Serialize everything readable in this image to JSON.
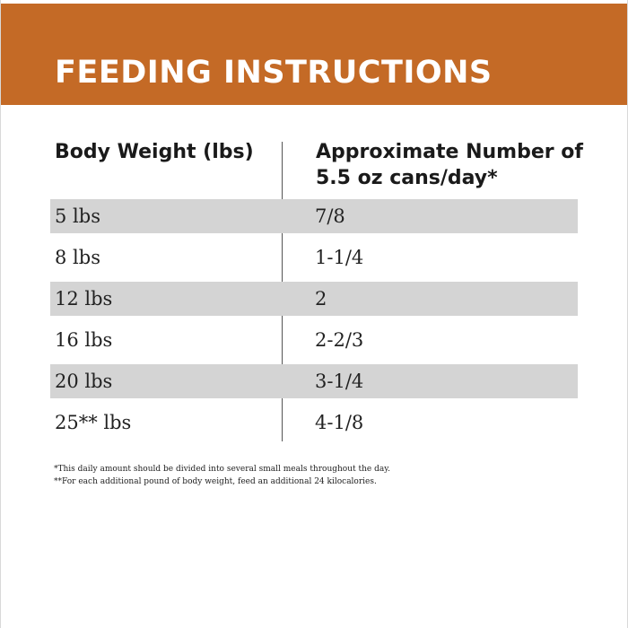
{
  "header": {
    "title": "FEEDING INSTRUCTIONS",
    "color": "#c46a26"
  },
  "table": {
    "columns": [
      "Body Weight (lbs)",
      "Approximate Number of 5.5 oz cans/day*"
    ],
    "rows": [
      {
        "weight": "5 lbs",
        "cans": "7/8",
        "shaded": true
      },
      {
        "weight": "8 lbs",
        "cans": "1-1/4",
        "shaded": false
      },
      {
        "weight": "12 lbs",
        "cans": "2",
        "shaded": true
      },
      {
        "weight": "16 lbs",
        "cans": "2-2/3",
        "shaded": false
      },
      {
        "weight": "20 lbs",
        "cans": "3-1/4",
        "shaded": true
      },
      {
        "weight": "25** lbs",
        "cans": "4-1/8",
        "shaded": false
      }
    ],
    "shade_color": "#d4d4d4"
  },
  "footnotes": [
    "*This daily amount should be divided into several small meals throughout the day.",
    "**For each additional pound of body weight, feed an additional 24 kilocalories."
  ]
}
